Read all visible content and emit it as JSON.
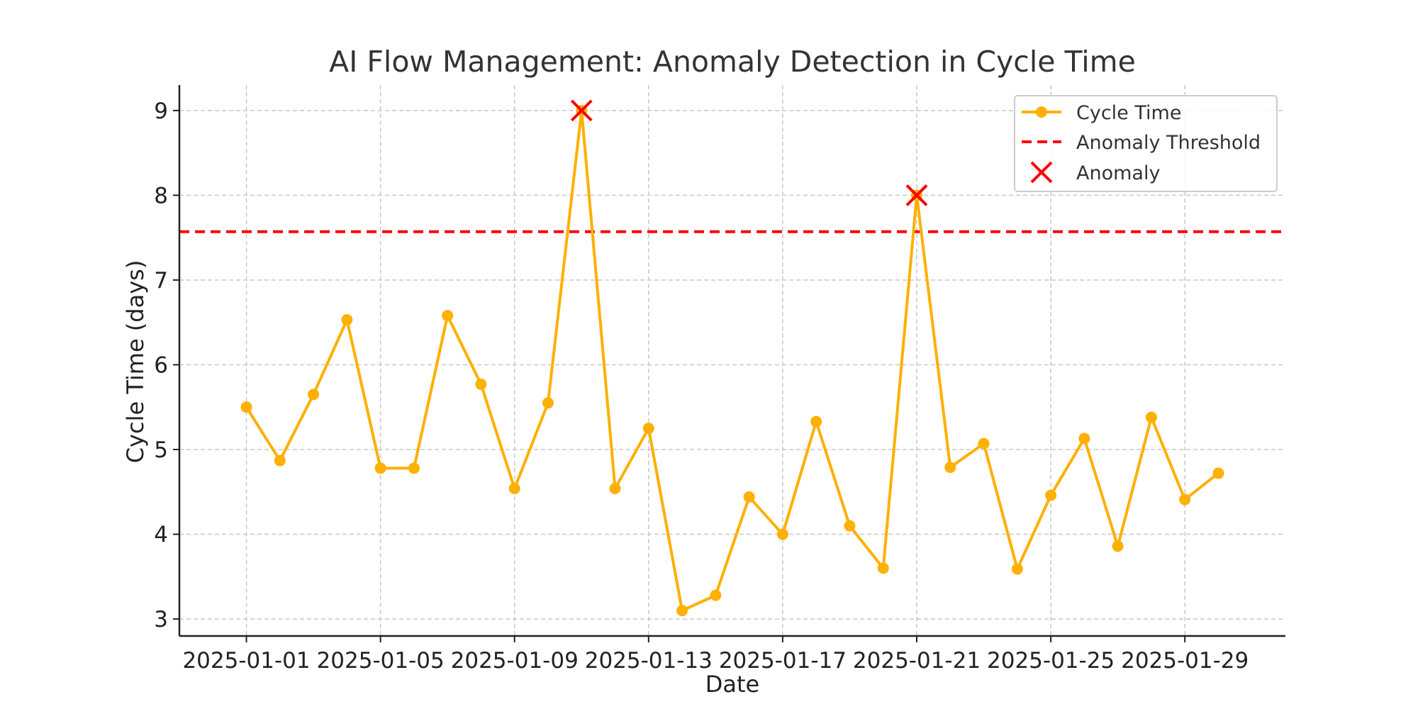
{
  "chart_data": {
    "type": "line",
    "title": "AI Flow Management: Anomaly Detection in Cycle Time",
    "xlabel": "Date",
    "ylabel": "Cycle Time (days)",
    "xlim": [
      "2024-12-30",
      "2025-02-01"
    ],
    "ylim": [
      2.8,
      9.3
    ],
    "x_ticks": [
      "2025-01-01",
      "2025-01-05",
      "2025-01-09",
      "2025-01-13",
      "2025-01-17",
      "2025-01-21",
      "2025-01-25",
      "2025-01-29"
    ],
    "y_ticks": [
      3,
      4,
      5,
      6,
      7,
      8,
      9
    ],
    "grid": true,
    "legend_position": "top-right",
    "colors": {
      "line": "#FFB000",
      "threshold": "#FF0000",
      "anomaly": "#FF0000"
    },
    "x": [
      "2025-01-01",
      "2025-01-02",
      "2025-01-03",
      "2025-01-04",
      "2025-01-05",
      "2025-01-06",
      "2025-01-07",
      "2025-01-08",
      "2025-01-09",
      "2025-01-10",
      "2025-01-11",
      "2025-01-12",
      "2025-01-13",
      "2025-01-14",
      "2025-01-15",
      "2025-01-16",
      "2025-01-17",
      "2025-01-18",
      "2025-01-19",
      "2025-01-20",
      "2025-01-21",
      "2025-01-22",
      "2025-01-23",
      "2025-01-24",
      "2025-01-25",
      "2025-01-26",
      "2025-01-27",
      "2025-01-28",
      "2025-01-29",
      "2025-01-30"
    ],
    "series": [
      {
        "name": "Cycle Time",
        "values": [
          5.5,
          4.87,
          5.65,
          6.53,
          4.78,
          4.78,
          6.58,
          5.77,
          4.54,
          5.55,
          9.0,
          4.54,
          5.25,
          3.1,
          3.28,
          4.44,
          4.0,
          5.33,
          4.1,
          3.6,
          8.0,
          4.79,
          5.07,
          3.59,
          4.46,
          5.13,
          3.86,
          5.38,
          4.41,
          4.72
        ]
      }
    ],
    "threshold": {
      "name": "Anomaly Threshold",
      "value": 7.57
    },
    "anomalies": {
      "name": "Anomaly",
      "x": [
        "2025-01-11",
        "2025-01-21"
      ],
      "values": [
        9.0,
        8.0
      ]
    }
  }
}
